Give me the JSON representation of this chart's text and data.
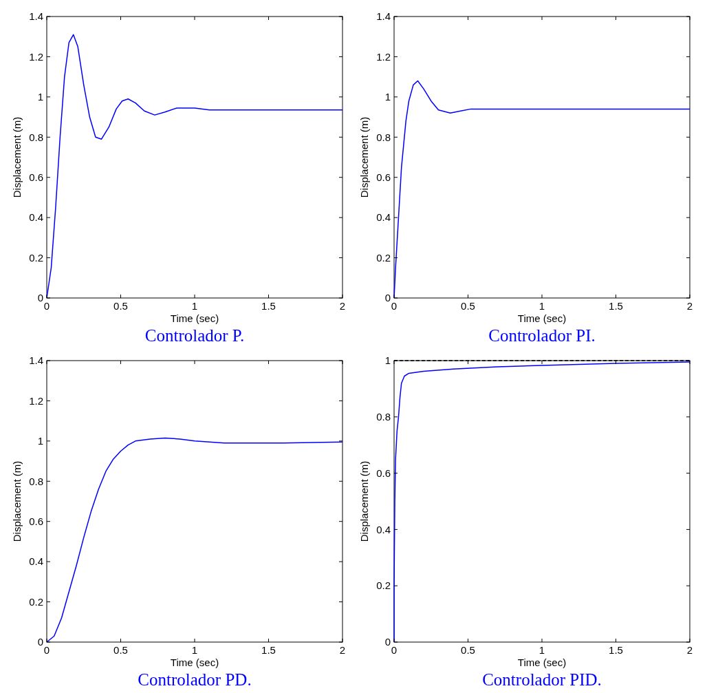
{
  "chart_data": [
    {
      "type": "line",
      "title": "Controlador P.",
      "xlabel": "Time (sec)",
      "ylabel": "Displacement (m)",
      "xlim": [
        0,
        2
      ],
      "ylim": [
        0,
        1.4
      ],
      "xticks": [
        0,
        0.5,
        1,
        1.5,
        2
      ],
      "yticks": [
        0,
        0.2,
        0.4,
        0.6,
        0.8,
        1,
        1.2,
        1.4
      ],
      "grid": false,
      "series": [
        {
          "color": "#0000ff",
          "x": [
            0,
            0.03,
            0.06,
            0.09,
            0.12,
            0.15,
            0.18,
            0.21,
            0.25,
            0.29,
            0.33,
            0.37,
            0.42,
            0.47,
            0.51,
            0.55,
            0.6,
            0.66,
            0.73,
            0.8,
            0.88,
            1.0,
            1.1,
            2
          ],
          "values": [
            0,
            0.15,
            0.45,
            0.8,
            1.1,
            1.27,
            1.31,
            1.25,
            1.06,
            0.9,
            0.8,
            0.79,
            0.85,
            0.94,
            0.98,
            0.99,
            0.97,
            0.93,
            0.91,
            0.925,
            0.945,
            0.945,
            0.935,
            0.935
          ]
        }
      ]
    },
    {
      "type": "line",
      "title": "Controlador PI.",
      "xlabel": "Time (sec)",
      "ylabel": "Displacement (m)",
      "xlim": [
        0,
        2
      ],
      "ylim": [
        0,
        1.4
      ],
      "xticks": [
        0,
        0.5,
        1,
        1.5,
        2
      ],
      "yticks": [
        0,
        0.2,
        0.4,
        0.6,
        0.8,
        1,
        1.2,
        1.4
      ],
      "grid": false,
      "series": [
        {
          "color": "#0000ff",
          "x": [
            0,
            0.01,
            0.03,
            0.05,
            0.08,
            0.1,
            0.13,
            0.16,
            0.2,
            0.25,
            0.3,
            0.38,
            0.45,
            0.52,
            2
          ],
          "values": [
            0,
            0.15,
            0.4,
            0.65,
            0.88,
            0.98,
            1.06,
            1.08,
            1.04,
            0.98,
            0.935,
            0.92,
            0.93,
            0.94,
            0.94
          ]
        }
      ]
    },
    {
      "type": "line",
      "title": "Controlador PD.",
      "xlabel": "Time (sec)",
      "ylabel": "Displacement (m)",
      "xlim": [
        0,
        2
      ],
      "ylim": [
        0,
        1.4
      ],
      "xticks": [
        0,
        0.5,
        1,
        1.5,
        2
      ],
      "yticks": [
        0,
        0.2,
        0.4,
        0.6,
        0.8,
        1,
        1.2,
        1.4
      ],
      "grid": false,
      "series": [
        {
          "color": "#0000ff",
          "x": [
            0,
            0.05,
            0.1,
            0.15,
            0.2,
            0.25,
            0.3,
            0.35,
            0.4,
            0.45,
            0.5,
            0.55,
            0.6,
            0.7,
            0.8,
            0.9,
            1.0,
            1.2,
            1.6,
            2
          ],
          "values": [
            0,
            0.03,
            0.12,
            0.25,
            0.38,
            0.52,
            0.65,
            0.76,
            0.85,
            0.91,
            0.95,
            0.98,
            1.0,
            1.01,
            1.015,
            1.01,
            1.0,
            0.99,
            0.99,
            0.995
          ]
        }
      ]
    },
    {
      "type": "line",
      "title": "Controlador PID.",
      "xlabel": "Time (sec)",
      "ylabel": "Displacement (m)",
      "xlim": [
        0,
        2
      ],
      "ylim": [
        0,
        1
      ],
      "xticks": [
        0,
        0.5,
        1,
        1.5,
        2
      ],
      "yticks": [
        0,
        0.2,
        0.4,
        0.6,
        0.8,
        1
      ],
      "grid": false,
      "ref_lines": [
        {
          "axis": "y",
          "value": 1,
          "color": "#000000",
          "line_style": "dashed"
        }
      ],
      "series": [
        {
          "color": "#0000ff",
          "x": [
            0,
            0,
            0.005,
            0.01,
            0.02,
            0.03,
            0.04,
            0.05,
            0.07,
            0.1,
            0.2,
            0.4,
            0.7,
            1.0,
            1.5,
            2
          ],
          "values": [
            0,
            0.2,
            0.5,
            0.65,
            0.75,
            0.8,
            0.87,
            0.92,
            0.945,
            0.955,
            0.962,
            0.97,
            0.978,
            0.983,
            0.99,
            0.995
          ]
        }
      ]
    }
  ]
}
